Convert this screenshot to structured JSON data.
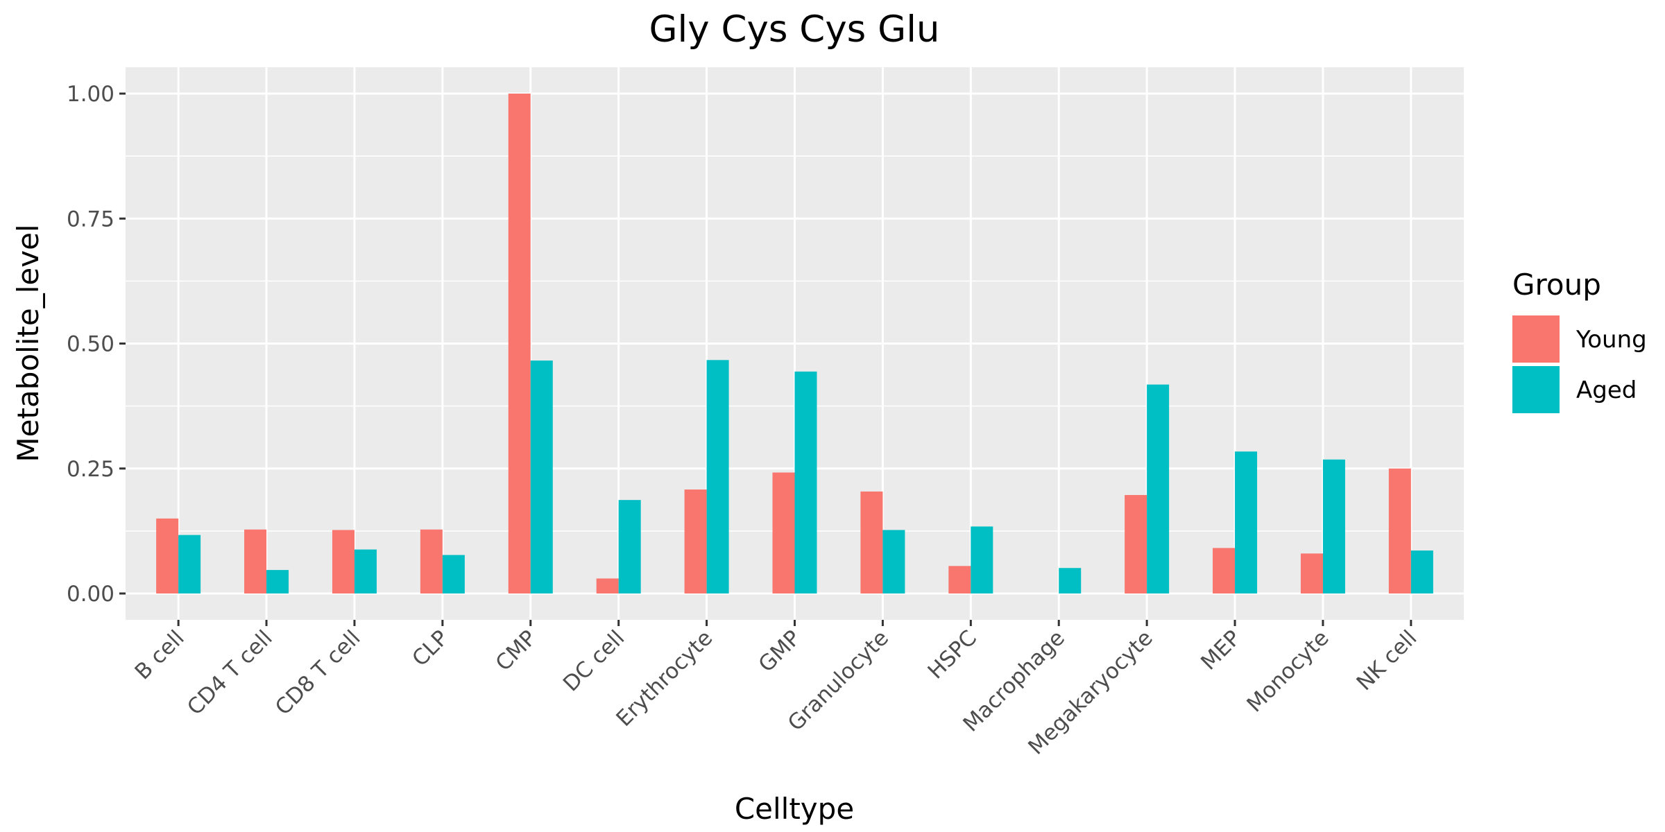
{
  "chart_data": {
    "type": "bar",
    "title": "Gly Cys Cys Glu",
    "xlabel": "Celltype",
    "ylabel": "Metabolite_level",
    "categories": [
      "B cell",
      "CD4 T cell",
      "CD8 T cell",
      "CLP",
      "CMP",
      "DC cell",
      "Erythrocyte",
      "GMP",
      "Granulocyte",
      "HSPC",
      "Macrophage",
      "Megakaryocyte",
      "MEP",
      "Monocyte",
      "NK cell"
    ],
    "series": [
      {
        "name": "Young",
        "color": "#F8766D",
        "values": [
          0.15,
          0.128,
          0.127,
          0.128,
          1.0,
          0.03,
          0.208,
          0.242,
          0.204,
          0.055,
          null,
          0.197,
          0.091,
          0.08,
          0.25
        ]
      },
      {
        "name": "Aged",
        "color": "#00BFC4",
        "values": [
          0.117,
          0.047,
          0.088,
          0.077,
          0.466,
          0.187,
          0.467,
          0.444,
          0.127,
          0.134,
          0.051,
          0.418,
          0.284,
          0.268,
          0.086
        ]
      }
    ],
    "ylim": [
      -0.05,
      1.05
    ],
    "yticks": [
      0,
      0.25,
      0.5,
      0.75,
      1.0
    ],
    "ytick_labels": [
      "0.00",
      "0.25",
      "0.50",
      "0.75",
      "1.00"
    ],
    "legend": {
      "title": "Group",
      "position": "right"
    },
    "grid": true,
    "panel_background": "#EBEBEB"
  }
}
